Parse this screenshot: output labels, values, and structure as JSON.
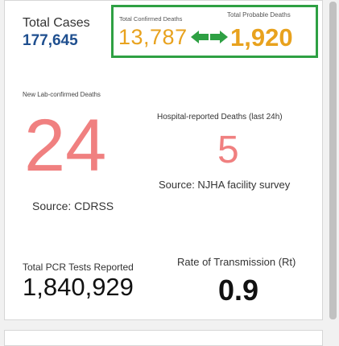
{
  "total_cases": {
    "label": "Total Cases",
    "value": "177,645"
  },
  "deaths": {
    "confirmed_label": "Total Confirmed Deaths",
    "confirmed_value": "13,787",
    "probable_label": "Total Probable Deaths",
    "probable_value": "1,920",
    "arrow_icon": "double-arrow-icon",
    "highlight_color": "#2ea043",
    "value_color": "#e8a21e"
  },
  "lab_confirmed": {
    "label": "New Lab-confirmed Deaths",
    "value": "24",
    "source": "Source: CDRSS",
    "color": "#f08080"
  },
  "hospital": {
    "label": "Hospital-reported Deaths (last 24h)",
    "value": "5",
    "source": "Source: NJHA facility survey"
  },
  "pcr": {
    "label": "Total PCR Tests Reported",
    "value": "1,840,929"
  },
  "rt": {
    "label": "Rate of Transmission (Rt)",
    "value": "0.9"
  }
}
